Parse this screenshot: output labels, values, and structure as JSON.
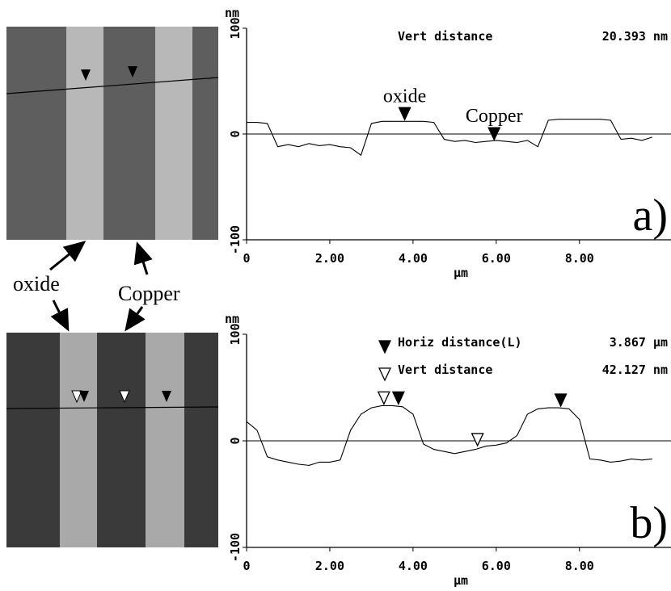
{
  "chart_data": [
    {
      "type": "line",
      "panel_label": "a)",
      "y_unit": "nm",
      "x_label": "µm",
      "xlim": [
        0,
        10.2
      ],
      "ylim": [
        -100,
        100
      ],
      "xticks": [
        0,
        {
          "value": 2,
          "label": "2.00"
        },
        {
          "value": 4,
          "label": "4.00"
        },
        {
          "value": 6,
          "label": "6.00"
        },
        {
          "value": 8,
          "label": "8.00"
        }
      ],
      "yticks": [
        -100,
        0,
        100
      ],
      "x": [
        0,
        0.25,
        0.5,
        0.75,
        1,
        1.25,
        1.5,
        1.75,
        2,
        2.25,
        2.5,
        2.75,
        3,
        3.25,
        3.5,
        3.75,
        4,
        4.25,
        4.5,
        4.75,
        5,
        5.25,
        5.5,
        5.75,
        6,
        6.25,
        6.5,
        6.75,
        7,
        7.25,
        7.5,
        7.75,
        8,
        8.25,
        8.5,
        8.75,
        9,
        9.25,
        9.5,
        9.75
      ],
      "values": [
        11,
        11,
        10,
        -12,
        -10,
        -12,
        -9,
        -11,
        -10,
        -12,
        -13,
        -20,
        10,
        12,
        12,
        12,
        12,
        12,
        11,
        -5,
        -7,
        -6,
        -8,
        -7,
        -6,
        -7,
        -8,
        -6,
        -12,
        13,
        14,
        14,
        14,
        14,
        14,
        13,
        -5,
        -4,
        -6,
        -3
      ],
      "color": "#000000",
      "cursors": [
        {
          "x": 3.8,
          "y": 12,
          "filled": true
        },
        {
          "x": 5.95,
          "y": -7,
          "filled": true
        }
      ],
      "annotations": [
        "oxide",
        "Copper"
      ],
      "readouts": [
        {
          "label": "Vert distance",
          "value": "20.393 nm"
        }
      ]
    },
    {
      "type": "line",
      "panel_label": "b)",
      "y_unit": "nm",
      "x_label": "µm",
      "xlim": [
        0,
        10.2
      ],
      "ylim": [
        -100,
        100
      ],
      "xticks": [
        0,
        {
          "value": 2,
          "label": "2.00"
        },
        {
          "value": 4,
          "label": "4.00"
        },
        {
          "value": 6,
          "label": "6.00"
        },
        {
          "value": 8,
          "label": "8.00"
        }
      ],
      "yticks": [
        -100,
        0,
        100
      ],
      "x": [
        0,
        0.25,
        0.5,
        0.75,
        1,
        1.25,
        1.5,
        1.75,
        2,
        2.25,
        2.5,
        2.75,
        3,
        3.25,
        3.5,
        3.75,
        4,
        4.25,
        4.5,
        4.75,
        5,
        5.25,
        5.5,
        5.75,
        6,
        6.25,
        6.5,
        6.75,
        7,
        7.25,
        7.5,
        7.75,
        8,
        8.25,
        8.5,
        8.75,
        9,
        9.25,
        9.5,
        9.75
      ],
      "values": [
        18,
        10,
        -15,
        -18,
        -20,
        -22,
        -23,
        -20,
        -20,
        -18,
        10,
        25,
        31,
        33,
        33,
        32,
        25,
        -3,
        -8,
        -10,
        -12,
        -10,
        -8,
        -5,
        -4,
        -2,
        5,
        25,
        30,
        31,
        31,
        30,
        20,
        -17,
        -18,
        -20,
        -19,
        -17,
        -18,
        -17
      ],
      "color": "#000000",
      "cursors": [
        {
          "x": 3.3,
          "y": 33,
          "filled": false
        },
        {
          "x": 3.65,
          "y": 33,
          "filled": true
        },
        {
          "x": 5.55,
          "y": -6,
          "filled": false
        },
        {
          "x": 7.55,
          "y": 31,
          "filled": true
        }
      ],
      "readouts": [
        {
          "label": "Horiz distance(L)",
          "value": "3.867 µm",
          "filled": true
        },
        {
          "label": "Vert distance",
          "value": "42.127 nm",
          "filled": false
        }
      ]
    }
  ],
  "image_labels": [
    "oxide",
    "Copper"
  ]
}
